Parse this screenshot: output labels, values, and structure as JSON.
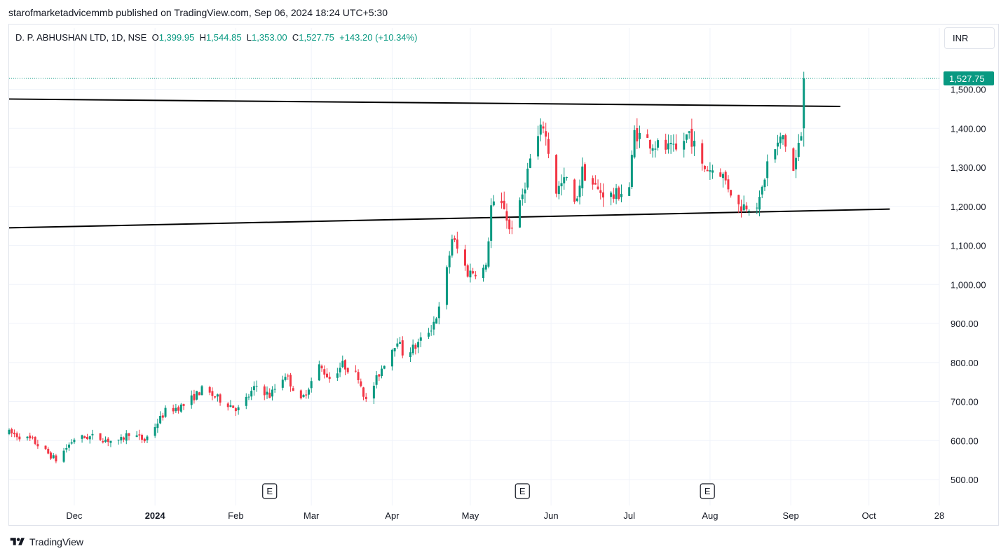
{
  "publisher_line": "starofmarketadvicemmb published on TradingView.com, Sep 06, 2024 18:24 UTC+5:30",
  "legend": {
    "symbol": "D. P. ABHUSHAN LTD, 1D, NSE",
    "o_label": "O",
    "o_value": "1,399.95",
    "h_label": "H",
    "h_value": "1,544.85",
    "l_label": "L",
    "l_value": "1,353.00",
    "c_label": "C",
    "c_value": "1,527.75",
    "change": "+143.20 (+10.34%)"
  },
  "currency_button": "INR",
  "footer_brand": "TradingView",
  "colors": {
    "up": "#089981",
    "down": "#f23645",
    "grid": "#f0f3fa",
    "trendline": "#000000"
  },
  "chart_data": {
    "type": "candlestick",
    "ylim": [
      450,
      1570
    ],
    "y_ticks": [
      500,
      600,
      700,
      800,
      900,
      1000,
      1100,
      1200,
      1300,
      1400,
      1500
    ],
    "y_tick_labels": [
      "500.00",
      "600.00",
      "700.00",
      "800.00",
      "900.00",
      "1,000.00",
      "1,100.00",
      "1,200.00",
      "1,300.00",
      "1,400.00",
      "1,500.00"
    ],
    "x_range": [
      "2023-11-06",
      "2024-10-28"
    ],
    "x_ticks": [
      {
        "date": "2023-12-01",
        "label": "Dec",
        "bold": false
      },
      {
        "date": "2024-01-01",
        "label": "2024",
        "bold": true
      },
      {
        "date": "2024-02-01",
        "label": "Feb",
        "bold": false
      },
      {
        "date": "2024-03-01",
        "label": "Mar",
        "bold": false
      },
      {
        "date": "2024-04-01",
        "label": "Apr",
        "bold": false
      },
      {
        "date": "2024-05-01",
        "label": "May",
        "bold": false
      },
      {
        "date": "2024-06-01",
        "label": "Jun",
        "bold": false
      },
      {
        "date": "2024-07-01",
        "label": "Jul",
        "bold": false
      },
      {
        "date": "2024-08-01",
        "label": "Aug",
        "bold": false
      },
      {
        "date": "2024-09-01",
        "label": "Sep",
        "bold": false
      },
      {
        "date": "2024-10-01",
        "label": "Oct",
        "bold": false
      },
      {
        "date": "2024-10-28",
        "label": "28",
        "bold": false
      }
    ],
    "last_price": 1527.75,
    "last_price_label": "1,527.75",
    "earnings_markers": [
      {
        "date": "2024-02-14",
        "label": "E"
      },
      {
        "date": "2024-05-21",
        "label": "E"
      },
      {
        "date": "2024-07-31",
        "label": "E"
      }
    ],
    "trendlines": [
      {
        "name": "resistance",
        "start": {
          "date": "2023-11-06",
          "price": 1475
        },
        "end": {
          "date": "2024-09-20",
          "price": 1456
        }
      },
      {
        "name": "support",
        "start": {
          "date": "2023-11-06",
          "price": 1145
        },
        "end": {
          "date": "2024-10-09",
          "price": 1193
        }
      }
    ],
    "anchors": [
      {
        "date": "2023-11-06",
        "price": 620
      },
      {
        "date": "2023-11-15",
        "price": 600
      },
      {
        "date": "2023-11-24",
        "price": 550
      },
      {
        "date": "2023-12-01",
        "price": 605
      },
      {
        "date": "2023-12-08",
        "price": 610
      },
      {
        "date": "2023-12-18",
        "price": 595
      },
      {
        "date": "2023-12-22",
        "price": 620
      },
      {
        "date": "2023-12-28",
        "price": 600
      },
      {
        "date": "2024-01-05",
        "price": 675
      },
      {
        "date": "2024-01-12",
        "price": 690
      },
      {
        "date": "2024-01-19",
        "price": 730
      },
      {
        "date": "2024-01-26",
        "price": 705
      },
      {
        "date": "2024-02-02",
        "price": 680
      },
      {
        "date": "2024-02-09",
        "price": 740
      },
      {
        "date": "2024-02-14",
        "price": 715
      },
      {
        "date": "2024-02-20",
        "price": 770
      },
      {
        "date": "2024-02-26",
        "price": 700
      },
      {
        "date": "2024-03-04",
        "price": 790
      },
      {
        "date": "2024-03-08",
        "price": 760
      },
      {
        "date": "2024-03-13",
        "price": 795
      },
      {
        "date": "2024-03-19",
        "price": 765
      },
      {
        "date": "2024-03-22",
        "price": 700
      },
      {
        "date": "2024-03-29",
        "price": 800
      },
      {
        "date": "2024-04-03",
        "price": 860
      },
      {
        "date": "2024-04-05",
        "price": 825
      },
      {
        "date": "2024-04-10",
        "price": 840
      },
      {
        "date": "2024-04-16",
        "price": 890
      },
      {
        "date": "2024-04-20",
        "price": 950
      },
      {
        "date": "2024-04-24",
        "price": 1120
      },
      {
        "date": "2024-04-30",
        "price": 1030
      },
      {
        "date": "2024-05-07",
        "price": 1040
      },
      {
        "date": "2024-05-09",
        "price": 1200
      },
      {
        "date": "2024-05-14",
        "price": 1200
      },
      {
        "date": "2024-05-16",
        "price": 1140
      },
      {
        "date": "2024-05-20",
        "price": 1200
      },
      {
        "date": "2024-05-24",
        "price": 1320
      },
      {
        "date": "2024-05-29",
        "price": 1410
      },
      {
        "date": "2024-06-03",
        "price": 1240
      },
      {
        "date": "2024-06-07",
        "price": 1270
      },
      {
        "date": "2024-06-10",
        "price": 1200
      },
      {
        "date": "2024-06-13",
        "price": 1290
      },
      {
        "date": "2024-06-19",
        "price": 1240
      },
      {
        "date": "2024-06-25",
        "price": 1225
      },
      {
        "date": "2024-07-01",
        "price": 1250
      },
      {
        "date": "2024-07-03",
        "price": 1390
      },
      {
        "date": "2024-07-10",
        "price": 1360
      },
      {
        "date": "2024-07-19",
        "price": 1340
      },
      {
        "date": "2024-07-24",
        "price": 1390
      },
      {
        "date": "2024-07-29",
        "price": 1300
      },
      {
        "date": "2024-08-05",
        "price": 1290
      },
      {
        "date": "2024-08-12",
        "price": 1200
      },
      {
        "date": "2024-08-20",
        "price": 1210
      },
      {
        "date": "2024-08-23",
        "price": 1310
      },
      {
        "date": "2024-08-29",
        "price": 1380
      },
      {
        "date": "2024-09-02",
        "price": 1290
      },
      {
        "date": "2024-09-05",
        "price": 1385
      },
      {
        "date": "2024-09-06",
        "price": 1527
      }
    ]
  }
}
